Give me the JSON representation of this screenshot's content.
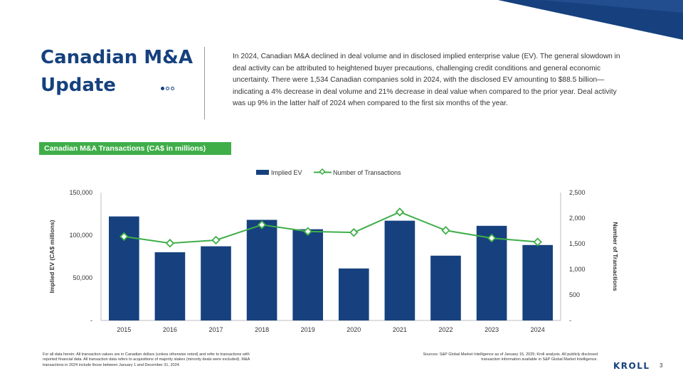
{
  "header": {
    "title": "Canadian M&A Update",
    "intro": "In 2024, Canadian M&A declined in deal volume and in disclosed implied enterprise value (EV). The general slowdown in deal activity can be attributed to heightened buyer precautions, challenging credit conditions and general economic uncertainty. There were 1,534 Canadian companies sold in 2024, with the disclosed EV amounting to $88.5 billion—indicating a 4% decrease in deal volume and 21% decrease in deal value when compared to the prior year. Deal activity was up 9% in the latter half of 2024 when compared to the first six months of the year."
  },
  "section_label": "Canadian M&A Transactions (CA$ in millions)",
  "colors": {
    "navy": "#16417e",
    "green": "#3fae49"
  },
  "chart_data": {
    "type": "bar",
    "categories": [
      "2015",
      "2016",
      "2017",
      "2018",
      "2019",
      "2020",
      "2021",
      "2022",
      "2023",
      "2024"
    ],
    "series": [
      {
        "name": "Implied EV",
        "type": "bar",
        "axis": "left",
        "color": "#16417e",
        "values": [
          122000,
          80000,
          87000,
          118000,
          107000,
          61000,
          117000,
          76000,
          111000,
          88500
        ]
      },
      {
        "name": "Number of Transactions",
        "type": "line",
        "axis": "right",
        "color": "#3fae49",
        "values": [
          1640,
          1510,
          1570,
          1870,
          1740,
          1720,
          2120,
          1760,
          1610,
          1534
        ]
      }
    ],
    "ylabel": "Implied EV (CA$ millions)",
    "y2label": "Number of Transactions",
    "ylim": [
      0,
      150000
    ],
    "y2lim": [
      0,
      2500
    ],
    "yticks": [
      "-",
      "50,000",
      "100,000",
      "150,000"
    ],
    "y2ticks": [
      "-",
      "500",
      "1,000",
      "1,500",
      "2,000",
      "2,500"
    ],
    "legend": "top-center",
    "grid": false
  },
  "footer": {
    "footnote": "For all data herein: All transaction values are in Canadian dollars (unless otherwise noted) and refer to transactions with reported financial data. All transaction data refers to acquisitions of majority stakes (minority deals were excluded). M&A transactions in 2024 include those between January 1 and December 31, 2024.",
    "sources": "Sources: S&P Global Market Intelligence as of January 15, 2025; Kroll analysis. All publicly disclosed transaction information available in S&P Global Market Intelligence.",
    "logo": "KROLL",
    "page": "3"
  }
}
